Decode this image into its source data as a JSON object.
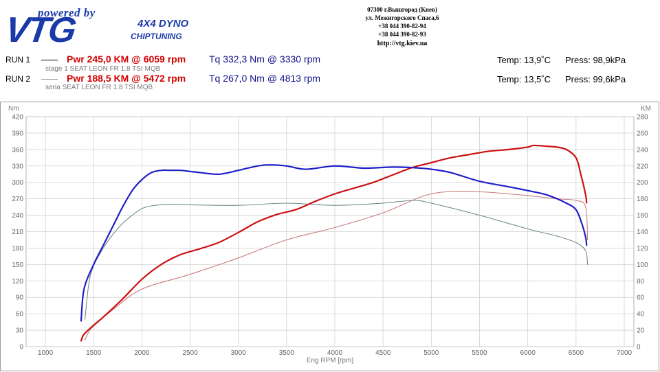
{
  "header": {
    "logo_tagline": "powered by",
    "logo_brand": "VTG",
    "logo_line1": "4X4 DYNO",
    "logo_line2": "CHIPTUNING",
    "address": [
      "07300 г.Вышгород (Киев)",
      "ул. Межигорского Спаса,6",
      "+38 044 390-82-94",
      "+38 044 390-82-93"
    ],
    "url": "http://vtg.kiev.ua"
  },
  "runs": [
    {
      "label": "RUN 1",
      "power": "Pwr  245,0 KM @ 6059 rpm",
      "torque": "Tq 332,3 Nm @ 3330 rpm",
      "description": "stage 1 SEAT LEON FR 1.8 TSI MQB",
      "temp": "Temp: 13,9˚C",
      "press": "Press: 98,9kPa"
    },
    {
      "label": "RUN 2",
      "power": "Pwr  188,5 KM @ 5472 rpm",
      "torque": "Tq 267,0 Nm @ 4813 rpm",
      "description": "seria SEAT LEON FR 1.8 TSI MQB",
      "temp": "Temp: 13,5˚C",
      "press": "Press: 99,6kPa"
    }
  ],
  "colors": {
    "power_run1": "#cc1111",
    "torque_run1": "#1e1ec8",
    "power_run2": "#c97a7a",
    "torque_run2": "#6f8c8c",
    "grid": "#d0d0d0"
  },
  "chart_data": {
    "type": "line",
    "xlabel": "Eng RPM [rpm]",
    "ylabel_left": "Nm",
    "ylabel_right": "KM",
    "xlim": [
      800,
      7100
    ],
    "ylim_left": [
      0,
      420
    ],
    "ylim_right": [
      0,
      280
    ],
    "x_ticks": [
      1000,
      1500,
      2000,
      2500,
      3000,
      3500,
      4000,
      4500,
      5000,
      5500,
      6000,
      6500,
      7000
    ],
    "y_ticks_left": [
      0,
      30,
      60,
      90,
      120,
      150,
      180,
      210,
      240,
      270,
      300,
      330,
      360,
      390,
      420
    ],
    "y_ticks_right": [
      0,
      20,
      40,
      60,
      80,
      100,
      120,
      140,
      160,
      180,
      200,
      220,
      240,
      260,
      280
    ],
    "grid": true,
    "series": [
      {
        "key": "tq1",
        "axis": "left",
        "color_key": "torque_run1",
        "width": 2.2,
        "x": [
          1370,
          1400,
          1500,
          1600,
          1700,
          1800,
          1900,
          2000,
          2100,
          2200,
          2300,
          2400,
          2500,
          2600,
          2800,
          3000,
          3200,
          3330,
          3500,
          3700,
          4000,
          4300,
          4600,
          4800,
          5000,
          5200,
          5500,
          5800,
          6000,
          6200,
          6400,
          6500,
          6560,
          6600,
          6610
        ],
        "y": [
          47,
          105,
          150,
          185,
          220,
          255,
          285,
          305,
          318,
          322,
          322,
          322,
          320,
          318,
          315,
          322,
          330,
          332,
          330,
          324,
          330,
          326,
          328,
          327,
          324,
          318,
          302,
          292,
          285,
          277,
          262,
          250,
          225,
          200,
          185
        ]
      },
      {
        "key": "pwr1",
        "axis": "right",
        "color_key": "power_run1",
        "width": 2.2,
        "x": [
          1370,
          1400,
          1500,
          1600,
          1800,
          2000,
          2200,
          2400,
          2600,
          2800,
          3000,
          3200,
          3400,
          3600,
          3800,
          4000,
          4200,
          4400,
          4600,
          4800,
          5000,
          5200,
          5400,
          5600,
          5800,
          6000,
          6059,
          6200,
          6300,
          6400,
          6500,
          6550,
          6600,
          6610
        ],
        "y": [
          7,
          15,
          26,
          36,
          58,
          82,
          100,
          112,
          119,
          127,
          139,
          152,
          161,
          167,
          177,
          186,
          193,
          200,
          209,
          218,
          224,
          230,
          234,
          238,
          240,
          243,
          245,
          244,
          243,
          240,
          230,
          210,
          185,
          175
        ]
      },
      {
        "key": "tq2",
        "axis": "left",
        "color_key": "torque_run2",
        "width": 1.1,
        "x": [
          1410,
          1450,
          1500,
          1600,
          1700,
          1800,
          1900,
          2000,
          2100,
          2300,
          2500,
          3000,
          3500,
          4000,
          4500,
          4813,
          5000,
          5500,
          6000,
          6300,
          6500,
          6600,
          6620
        ],
        "y": [
          50,
          115,
          148,
          180,
          205,
          225,
          240,
          252,
          257,
          260,
          259,
          258,
          262,
          258,
          262,
          267,
          262,
          240,
          215,
          202,
          190,
          175,
          150
        ]
      },
      {
        "key": "pwr2",
        "axis": "right",
        "color_key": "power_run2",
        "width": 1.1,
        "x": [
          1410,
          1450,
          1500,
          1700,
          2000,
          2500,
          3000,
          3500,
          4000,
          4500,
          5000,
          5472,
          5800,
          6000,
          6300,
          6500,
          6600,
          6620
        ],
        "y": [
          8,
          18,
          25,
          45,
          70,
          88,
          108,
          130,
          145,
          163,
          186,
          188.5,
          186,
          184,
          180,
          178,
          170,
          130
        ]
      }
    ]
  }
}
